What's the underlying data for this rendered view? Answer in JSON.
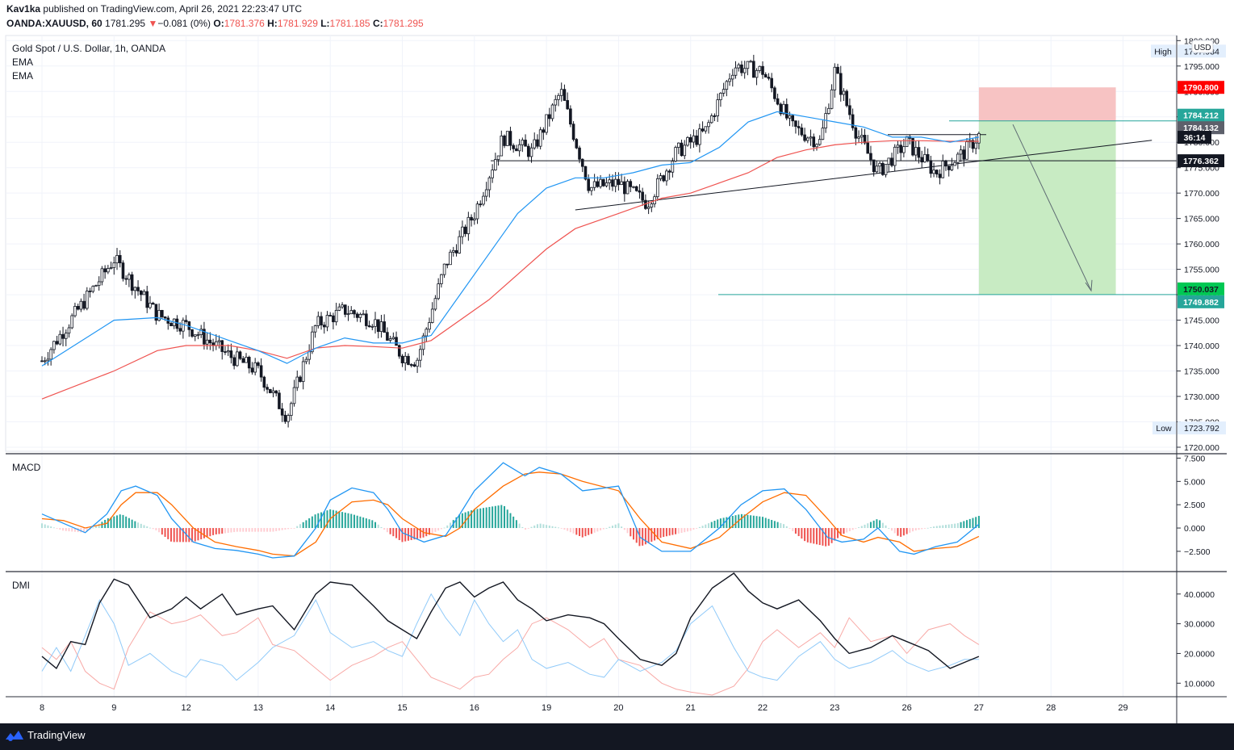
{
  "header": {
    "author": "Kav1ka",
    "published_text": "published on TradingView.com, April 26, 2021 22:23:47 UTC",
    "symbol": "OANDA:XAUUSD, 60",
    "last": "1781.295",
    "change_arrow": "▼",
    "change": "−0.081 (0%)",
    "o_label": "O:",
    "o_val": "1781.376",
    "h_label": "H:",
    "h_val": "1781.929",
    "l_label": "L:",
    "l_val": "1781.185",
    "c_label": "C:",
    "c_val": "1781.295"
  },
  "footer": {
    "brand": "TradingView"
  },
  "colors": {
    "up": "#26a69a",
    "down": "#ef5350",
    "ema_fast": "#2196f3",
    "ema_slow": "#ef5350",
    "macd_line": "#2196f3",
    "signal_line": "#ff6d00",
    "hist_up": "#26a69a",
    "hist_down": "#ef5350",
    "di_plus": "#90caf9",
    "di_minus": "#f8a9a6",
    "adx": "#131722",
    "stop_zone": "#f7c3c3",
    "target_zone": "#c8ebc3"
  },
  "chart_data": [
    {
      "type": "candlestick",
      "title": "Gold Spot / U.S. Dollar, 1h, OANDA",
      "indicators": [
        "EMA",
        "EMA"
      ],
      "currency": "USD",
      "x_ticks": [
        "8",
        "9",
        "12",
        "13",
        "14",
        "15",
        "16",
        "19",
        "20",
        "21",
        "22",
        "23",
        "26",
        "27",
        "28",
        "29"
      ],
      "ylim": [
        1719.2,
        1801.0
      ],
      "y_ticks": [
        1720,
        1725,
        1730,
        1735,
        1740,
        1745,
        1750,
        1755,
        1760,
        1765,
        1770,
        1775,
        1780,
        1785,
        1790,
        1795,
        1800
      ],
      "y_tick_labels": [
        "1720.000",
        "1725.000",
        "1730.000",
        "1735.000",
        "1740.000",
        "1745.000",
        "1750.000",
        "1755.000",
        "1760.000",
        "1765.000",
        "1770.000",
        "1775.000",
        "1780.000",
        "1785.000",
        "1790.000",
        "1795.000",
        "1800.000"
      ],
      "close_path_x": [
        0,
        1,
        1.6,
        2,
        2.6,
        3,
        3.4,
        3.8,
        4.2,
        4.6,
        5,
        5.2,
        5.6,
        6,
        6.4,
        6.8,
        7.2,
        7.6,
        8,
        8.4,
        8.8,
        9.2,
        9.6,
        10,
        10.4,
        10.8,
        11,
        11.3,
        11.6,
        12,
        12.4,
        12.8,
        13
      ],
      "close_path_y": [
        1737,
        1757,
        1746,
        1744,
        1738,
        1735,
        1726,
        1744,
        1747,
        1745,
        1738,
        1737,
        1756,
        1766,
        1781,
        1778,
        1790,
        1771,
        1772,
        1768,
        1778,
        1782,
        1795,
        1794,
        1783,
        1780,
        1794,
        1782,
        1774,
        1780,
        1774,
        1778,
        1781.3
      ],
      "ema_fast_x": [
        0,
        1,
        1.6,
        2,
        2.6,
        3,
        3.4,
        3.8,
        4.2,
        4.6,
        5,
        5.4,
        5.8,
        6.2,
        6.6,
        7,
        7.4,
        7.8,
        8.2,
        8.6,
        9,
        9.4,
        9.8,
        10.2,
        10.6,
        11,
        11.4,
        11.8,
        12.2,
        12.6,
        13
      ],
      "ema_fast": [
        1736,
        1745,
        1745.5,
        1744,
        1741,
        1739,
        1736.5,
        1739.5,
        1741.5,
        1740.5,
        1740.5,
        1742,
        1750,
        1758,
        1766,
        1771,
        1773,
        1773,
        1774,
        1775.5,
        1776,
        1779,
        1784,
        1786,
        1785,
        1784,
        1783,
        1781,
        1781,
        1780,
        1781
      ],
      "ema_slow_x": [
        0,
        1,
        1.6,
        2,
        2.6,
        3,
        3.4,
        3.8,
        4.2,
        4.6,
        5,
        5.4,
        5.8,
        6.2,
        6.6,
        7,
        7.4,
        7.8,
        8.2,
        8.6,
        9,
        9.4,
        9.8,
        10.2,
        10.6,
        11,
        11.4,
        11.8,
        12.2,
        12.6,
        13
      ],
      "ema_slow": [
        1729.5,
        1735,
        1739,
        1740,
        1740,
        1739,
        1737.5,
        1739.5,
        1740,
        1739.8,
        1739.5,
        1741,
        1745,
        1749,
        1754,
        1759,
        1763,
        1765,
        1767,
        1769,
        1770,
        1772,
        1774,
        1777,
        1778.5,
        1779.5,
        1780,
        1780.3,
        1780.3,
        1780.2,
        1780.2
      ],
      "day_high": 1797.934,
      "day_low": 1723.792,
      "price_tags": [
        {
          "value": 1790.8,
          "label": "1790.800",
          "kind": "stop"
        },
        {
          "value": 1784.212,
          "label": "1784.212",
          "kind": "teal"
        },
        {
          "value": 1784.132,
          "label": "1784.132",
          "kind": "gray"
        },
        {
          "value": 1781.295,
          "label": "36:14",
          "kind": "countdown"
        },
        {
          "value": 1776.362,
          "label": "1776.362",
          "kind": "black"
        },
        {
          "value": 1750.037,
          "label": "1750.037",
          "kind": "green"
        },
        {
          "value": 1749.882,
          "label": "1749.882",
          "kind": "teal"
        }
      ],
      "high_label": "High",
      "high_value_label": "1797.934",
      "low_label": "Low",
      "low_value_label": "1723.792",
      "position": {
        "type": "short",
        "entry": 1784.212,
        "stop": 1790.8,
        "target": 1750.037,
        "start_x": 13.0,
        "end_x": 14.9
      },
      "drawings": {
        "support_level": 1776.362,
        "target_level": 1750.037,
        "entry_level": 1784.212,
        "range_high": 1781.5,
        "trendline": {
          "x": [
            7.4,
            15.4
          ],
          "y": [
            1766.7,
            1780.4
          ]
        }
      }
    },
    {
      "type": "macd",
      "title": "MACD",
      "ylim": [
        -4.5,
        7.8
      ],
      "y_ticks": [
        -2.5,
        0,
        2.5,
        5,
        7.5
      ],
      "y_tick_labels": [
        "−2.500",
        "0.000",
        "2.500",
        "5.000",
        "7.500"
      ],
      "macd_x": [
        0,
        0.3,
        0.6,
        0.9,
        1.1,
        1.3,
        1.6,
        1.8,
        2.1,
        2.4,
        2.7,
        3,
        3.2,
        3.5,
        3.8,
        4,
        4.3,
        4.6,
        4.8,
        5,
        5.3,
        5.6,
        5.8,
        6,
        6.4,
        6.7,
        6.9,
        7.2,
        7.5,
        8,
        8.3,
        8.6,
        9,
        9.4,
        9.7,
        10,
        10.3,
        10.6,
        10.9,
        11.1,
        11.4,
        11.6,
        11.9,
        12.1,
        12.4,
        12.7,
        13
      ],
      "macd": [
        1.5,
        0.5,
        -0.5,
        1.5,
        4,
        4.5,
        3.5,
        1,
        -1.5,
        -2.2,
        -2.4,
        -2.8,
        -3.2,
        -3,
        0,
        3,
        4.3,
        3.8,
        2,
        -0.5,
        -1.5,
        -0.8,
        1.5,
        4,
        7,
        5.6,
        6.5,
        5.8,
        4,
        4.5,
        -1,
        -2.5,
        -2.5,
        0,
        2.5,
        4,
        4.2,
        2,
        -1,
        -1.5,
        -1.2,
        0,
        -2.5,
        -2.8,
        -2,
        -1.5,
        0.4
      ],
      "signal": [
        1,
        0.8,
        0,
        0.5,
        2.5,
        3.8,
        3.8,
        2.5,
        0,
        -1.5,
        -2,
        -2.4,
        -2.8,
        -3,
        -1.5,
        1,
        2.8,
        3,
        2.5,
        1,
        -0.5,
        -0.9,
        0,
        2,
        4.5,
        5.8,
        6,
        5.8,
        5,
        4,
        1,
        -1.5,
        -2.2,
        -1,
        1,
        2.8,
        3.8,
        3.5,
        1,
        -0.8,
        -1.5,
        -1,
        -1.5,
        -2.5,
        -2.2,
        -2,
        -0.9
      ]
    },
    {
      "type": "dmi",
      "title": "DMI",
      "ylim": [
        6,
        47
      ],
      "y_ticks": [
        10,
        20,
        30,
        40
      ],
      "y_tick_labels": [
        "10.0000",
        "20.0000",
        "30.0000",
        "40.0000"
      ],
      "adx_x": [
        0,
        0.2,
        0.4,
        0.6,
        0.8,
        1,
        1.2,
        1.5,
        1.8,
        2,
        2.2,
        2.5,
        2.7,
        3,
        3.2,
        3.5,
        3.8,
        4,
        4.3,
        4.6,
        4.8,
        5,
        5.2,
        5.4,
        5.6,
        5.8,
        6,
        6.2,
        6.4,
        6.6,
        6.8,
        7,
        7.3,
        7.6,
        7.8,
        8,
        8.3,
        8.6,
        8.8,
        9,
        9.3,
        9.6,
        9.8,
        10,
        10.2,
        10.5,
        10.8,
        11,
        11.2,
        11.5,
        11.8,
        12,
        12.3,
        12.6,
        12.8,
        13
      ],
      "adx": [
        19,
        15,
        24,
        23,
        37,
        45,
        43,
        32,
        35,
        39,
        35,
        40,
        33,
        35,
        36,
        28,
        40,
        44,
        43,
        36,
        31,
        28,
        25,
        34,
        42,
        44,
        39,
        42,
        44,
        38,
        35,
        31,
        33,
        32,
        30,
        25,
        18,
        16,
        20,
        32,
        42,
        47,
        41,
        37,
        35,
        38,
        31,
        25,
        20,
        22,
        26,
        24,
        21,
        15,
        17,
        19
      ],
      "di_plus": [
        14,
        22,
        14,
        26,
        38,
        30,
        16,
        20,
        14,
        12,
        18,
        16,
        11,
        17,
        22,
        26,
        38,
        27,
        22,
        24,
        21,
        19,
        30,
        40,
        32,
        26,
        38,
        30,
        24,
        28,
        18,
        15,
        17,
        13,
        12,
        18,
        14,
        17,
        21,
        30,
        36,
        22,
        14,
        12,
        11,
        19,
        24,
        18,
        15,
        17,
        21,
        17,
        14,
        16,
        18,
        18
      ],
      "di_minus": [
        22,
        18,
        24,
        14,
        10,
        8,
        22,
        34,
        30,
        31,
        33,
        26,
        27,
        32,
        23,
        21,
        15,
        11,
        16,
        19,
        22,
        24,
        18,
        12,
        10,
        8,
        12,
        13,
        18,
        22,
        30,
        32,
        28,
        22,
        25,
        18,
        16,
        10,
        8,
        7,
        6,
        9,
        15,
        24,
        28,
        22,
        27,
        22,
        32,
        24,
        26,
        20,
        28,
        30,
        26,
        23
      ]
    }
  ]
}
